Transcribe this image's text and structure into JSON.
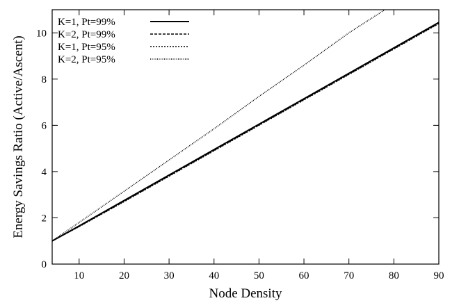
{
  "chart_data": {
    "type": "line",
    "xlabel": "Node Density",
    "ylabel": "Energy Savings Ratio (Active/Ascent)",
    "xlim": [
      4,
      90
    ],
    "ylim": [
      0,
      11
    ],
    "x_ticks": [
      10,
      20,
      30,
      40,
      50,
      60,
      70,
      80,
      90
    ],
    "y_ticks": [
      0,
      2,
      4,
      6,
      8,
      10
    ],
    "grid": false,
    "legend_position": "top-left",
    "series": [
      {
        "name": "K=1, Pt=99%",
        "style": "solid",
        "x": [
          4,
          10,
          20,
          30,
          40,
          50,
          60,
          70,
          80,
          90
        ],
        "y": [
          1.0,
          1.65,
          2.75,
          3.85,
          4.95,
          6.05,
          7.15,
          8.25,
          9.35,
          10.45
        ]
      },
      {
        "name": "K=2, Pt=99%",
        "style": "dashed",
        "x": [
          4,
          10,
          20,
          30,
          40,
          50,
          60,
          70,
          80,
          90
        ],
        "y": [
          1.0,
          1.63,
          2.72,
          3.82,
          4.92,
          6.02,
          7.12,
          8.22,
          9.32,
          10.42
        ]
      },
      {
        "name": "K=1, Pt=95%",
        "style": "dotted",
        "x": [
          4,
          10,
          20,
          30,
          40,
          50,
          60,
          70,
          80,
          90
        ],
        "y": [
          1.0,
          1.62,
          2.7,
          3.8,
          4.9,
          6.0,
          7.1,
          8.2,
          9.3,
          10.4
        ]
      },
      {
        "name": "K=2, Pt=95%",
        "style": "fine-dotted",
        "x": [
          4,
          10,
          20,
          30,
          40,
          50,
          60,
          70,
          78
        ],
        "y": [
          1.0,
          1.8,
          3.15,
          4.5,
          5.85,
          7.25,
          8.6,
          10.0,
          11.0
        ]
      }
    ]
  }
}
